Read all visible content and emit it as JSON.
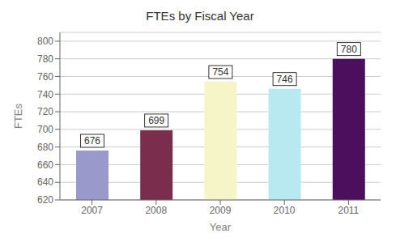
{
  "chart_data": {
    "type": "bar",
    "title": "FTEs by Fiscal Year",
    "xlabel": "Year",
    "ylabel": "FTEs",
    "categories": [
      "2007",
      "2008",
      "2009",
      "2010",
      "2011"
    ],
    "values": [
      676,
      699,
      754,
      746,
      780
    ],
    "colors": [
      "#9999cc",
      "#7b2d4e",
      "#f5f5c8",
      "#b8e8f0",
      "#4b0f5e"
    ],
    "ylim": [
      620,
      810
    ],
    "yticks": [
      620,
      640,
      660,
      680,
      700,
      720,
      740,
      760,
      780,
      800
    ],
    "grid": true,
    "data_labels": true
  }
}
